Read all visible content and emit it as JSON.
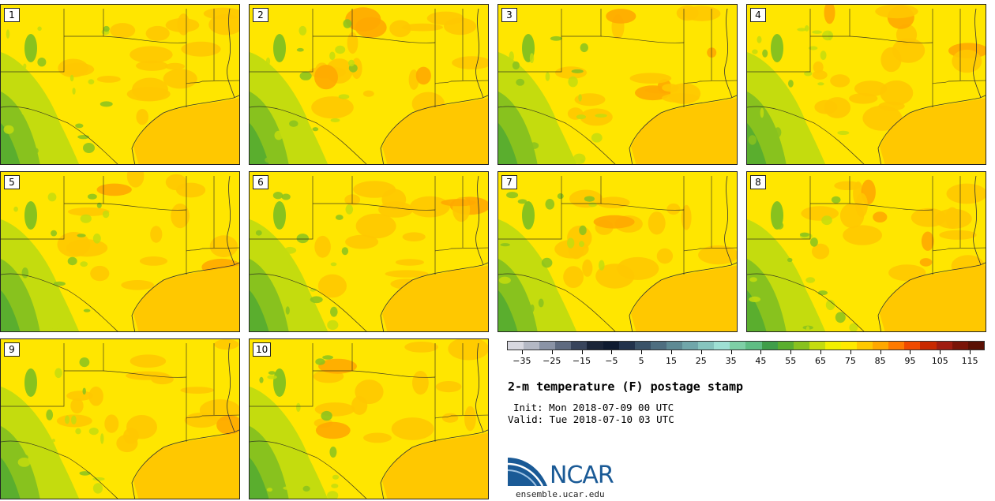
{
  "title": "2-m temperature (F) postage stamp",
  "init_text": "Init: Mon 2018-07-09 00 UTC",
  "valid_text": "Valid: Tue 2018-07-10 03 UTC",
  "logo": {
    "name": "NCAR",
    "url": "ensemble.ucar.edu"
  },
  "members": [
    {
      "label": "1",
      "warmth": 0.55
    },
    {
      "label": "2",
      "warmth": 0.55
    },
    {
      "label": "3",
      "warmth": 0.6
    },
    {
      "label": "4",
      "warmth": 0.6
    },
    {
      "label": "5",
      "warmth": 0.45
    },
    {
      "label": "6",
      "warmth": 0.5
    },
    {
      "label": "7",
      "warmth": 0.5
    },
    {
      "label": "8",
      "warmth": 0.55
    },
    {
      "label": "9",
      "warmth": 0.4
    },
    {
      "label": "10",
      "warmth": 0.45
    }
  ],
  "colorbar": {
    "colors": [
      "#d8d8e0",
      "#b4b8c4",
      "#8a93a6",
      "#5e6a80",
      "#38445c",
      "#1a2438",
      "#0e1a30",
      "#22324c",
      "#3a5268",
      "#4e6e80",
      "#5e8a94",
      "#70a6aa",
      "#86c4be",
      "#9ee0d4",
      "#7ecfa6",
      "#5fbd84",
      "#3f9e4a",
      "#5aae2e",
      "#88c21e",
      "#c4dc0e",
      "#f2f000",
      "#ffea00",
      "#ffc800",
      "#ffa800",
      "#ff7a00",
      "#f04a00",
      "#c82800",
      "#a01c10",
      "#7a1408",
      "#5a1004"
    ],
    "tick_labels": [
      "−35",
      "−25",
      "−15",
      "−5",
      "5",
      "15",
      "25",
      "35",
      "45",
      "55",
      "65",
      "75",
      "85",
      "95",
      "105",
      "115"
    ],
    "min": -40,
    "max": 120
  }
}
